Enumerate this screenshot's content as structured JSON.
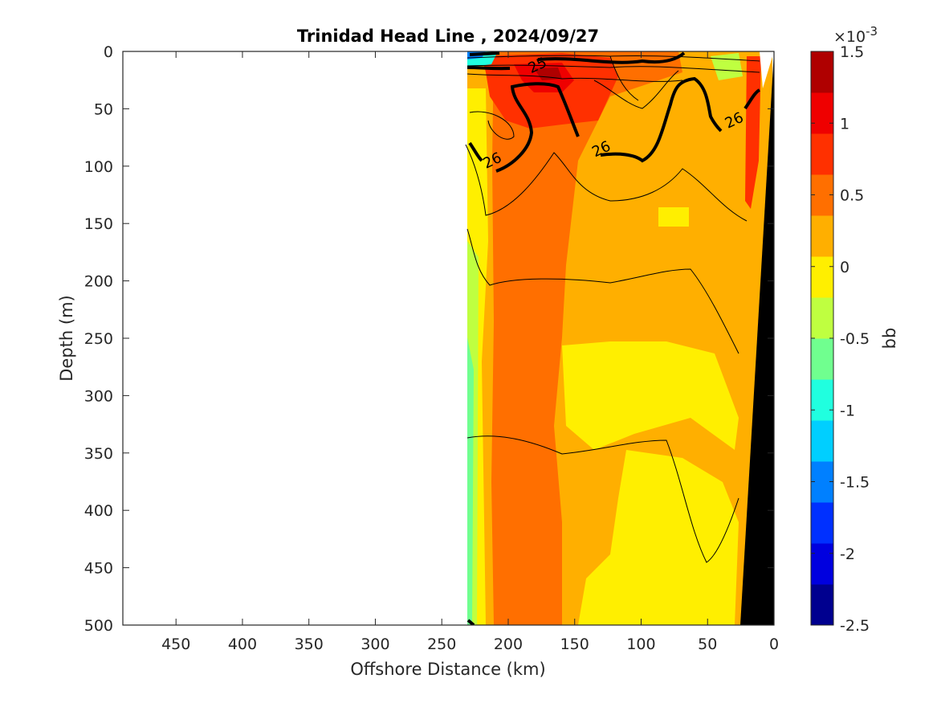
{
  "chart_data": {
    "type": "heatmap",
    "title": "Trinidad Head Line , 2024/09/27",
    "xlabel": "Offshore Distance (km)",
    "ylabel": "Depth (m)",
    "xlim": [
      490,
      0
    ],
    "ylim": [
      0,
      500
    ],
    "x_reversed": true,
    "y_reversed": true,
    "x_ticks": [
      450,
      400,
      350,
      300,
      250,
      200,
      150,
      100,
      50,
      0
    ],
    "y_ticks": [
      0,
      50,
      100,
      150,
      200,
      250,
      300,
      350,
      400,
      450,
      500
    ],
    "data_extent_x": [
      230,
      0
    ],
    "colorbar": {
      "label": "bb",
      "exponent_label": "×10",
      "exponent_power": "-3",
      "range": [
        -2.5,
        1.5
      ],
      "tick_values": [
        1.5,
        1,
        0.5,
        0,
        -0.5,
        -1,
        -1.5,
        -2,
        -2.5
      ],
      "tick_labels": [
        "1.5",
        "1",
        "0.5",
        "0",
        "-0.5",
        "-1",
        "-1.5",
        "-2",
        "-2.5"
      ],
      "colors": [
        "#00008f",
        "#0000df",
        "#0030ff",
        "#0080ff",
        "#00cfff",
        "#20ffdf",
        "#70ff8f",
        "#bfff40",
        "#ffef00",
        "#ffaf00",
        "#ff6f00",
        "#ff3000",
        "#ef0000",
        "#af0000"
      ]
    },
    "contour_labels": [
      {
        "text": "25",
        "x": 178,
        "y": 12
      },
      {
        "text": "26",
        "x": 130,
        "y": 85
      },
      {
        "text": "26",
        "x": 212,
        "y": 95
      },
      {
        "text": "26",
        "x": 30,
        "y": 60
      }
    ],
    "grid": false
  }
}
